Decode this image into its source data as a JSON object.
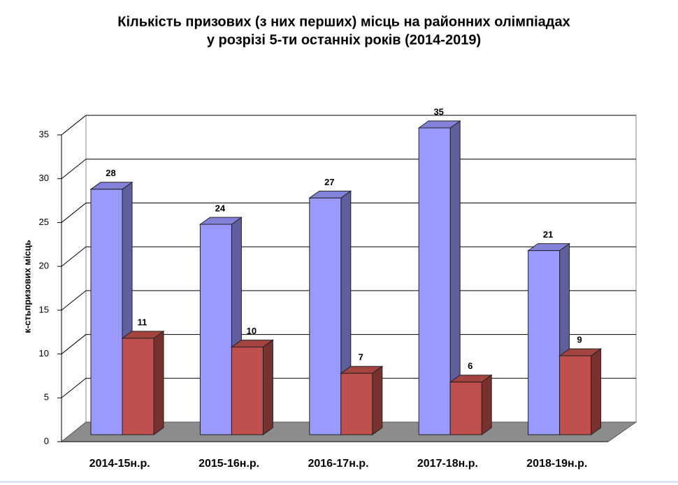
{
  "chart_data": {
    "type": "bar3d",
    "title": [
      "Кількість призових (з них перших) місць на районних олімпіадах",
      "у розрізі 5-ти останніх років (2014-2019)"
    ],
    "y_label": "к-стьпризових місць",
    "categories": [
      "2014-15н.р.",
      "2015-16н.р.",
      "2016-17н.р.",
      "2017-18н.р.",
      "2018-19н.р."
    ],
    "series": [
      {
        "color": "#9999ff",
        "values": [
          28,
          24,
          27,
          35,
          21
        ]
      },
      {
        "color": "#c0504d",
        "values": [
          11,
          10,
          7,
          6,
          9
        ]
      }
    ],
    "ylim": [
      0,
      35
    ],
    "yticks": [
      0,
      5,
      10,
      15,
      20,
      25,
      30,
      35
    ],
    "grid": true
  }
}
